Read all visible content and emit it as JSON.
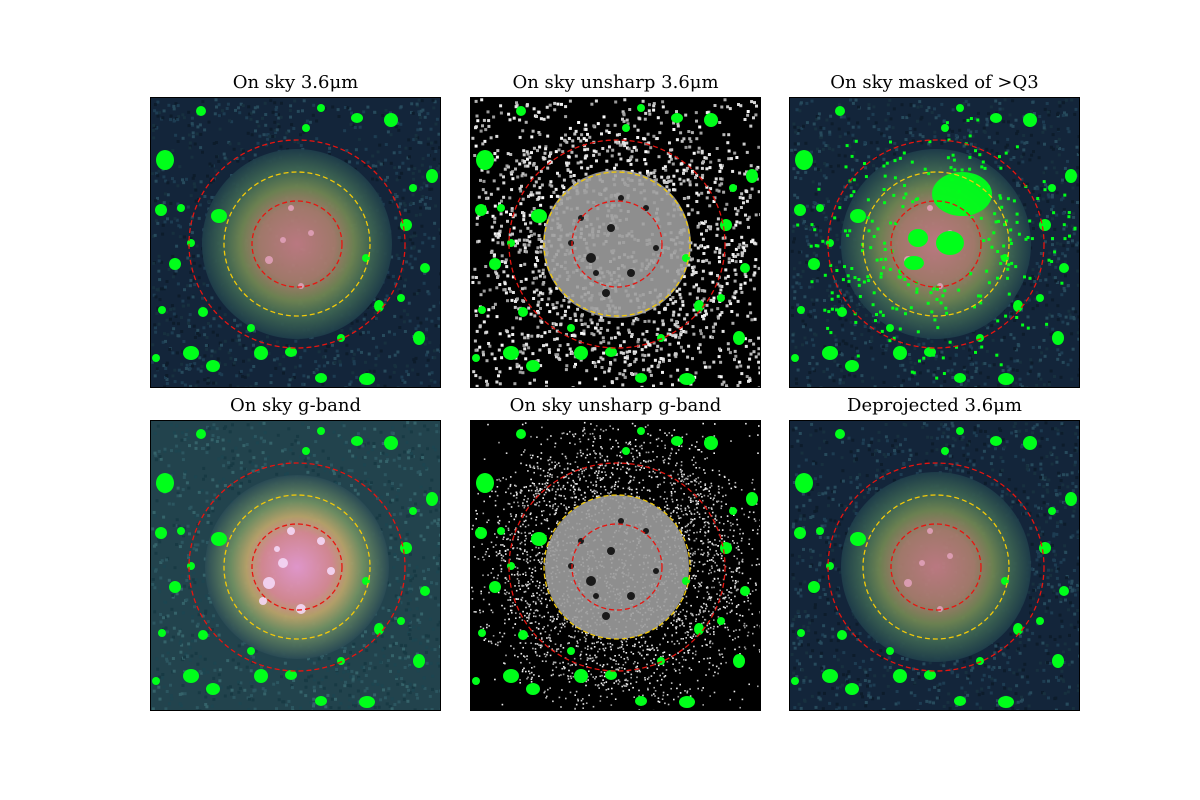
{
  "figure": {
    "panels": [
      {
        "title": "On sky 3.6μm",
        "style": "color_ir",
        "green_mask": "sparse"
      },
      {
        "title": "On sky unsharp 3.6μm",
        "style": "unsharp_ir",
        "green_mask": "sparse"
      },
      {
        "title": "On sky masked of >Q3",
        "style": "color_ir",
        "green_mask": "dense"
      },
      {
        "title": "On sky g-band",
        "style": "color_g",
        "green_mask": "sparse"
      },
      {
        "title": "On sky unsharp g-band",
        "style": "unsharp_g",
        "green_mask": "sparse"
      },
      {
        "title": "Deprojected 3.6μm",
        "style": "color_ir",
        "green_mask": "sparse"
      }
    ],
    "colors": {
      "mask": "#00ff1a",
      "outer_ellipse": "#e8140f",
      "inner_ellipse": "#e8140f",
      "middle_ellipse": "#f2c90a",
      "background_dark": "#13253a"
    }
  }
}
